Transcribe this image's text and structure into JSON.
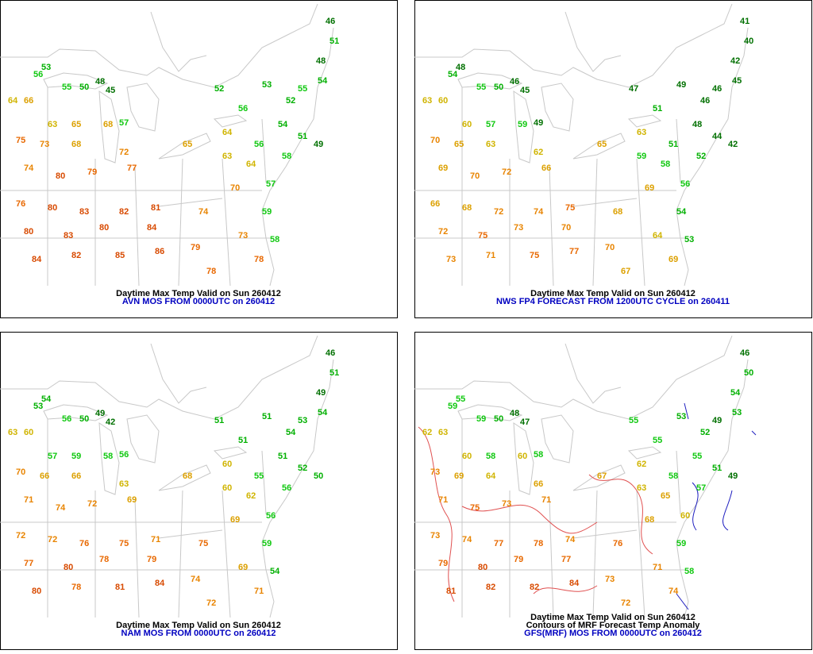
{
  "color_scale": [
    {
      "min": 0,
      "color": "#007000"
    },
    {
      "min": 50,
      "color": "#00b000"
    },
    {
      "min": 55,
      "color": "#10c810"
    },
    {
      "min": 60,
      "color": "#d0b400"
    },
    {
      "min": 65,
      "color": "#dca000"
    },
    {
      "min": 70,
      "color": "#e88400"
    },
    {
      "min": 75,
      "color": "#e86800"
    },
    {
      "min": 80,
      "color": "#d84a00"
    }
  ],
  "panels": [
    {
      "captions": [
        "Daytime Max Temp Valid on Sun 260412",
        "AVN MOS FROM 0000UTC on 260412"
      ],
      "values": [
        53,
        56,
        55,
        50,
        48,
        45,
        64,
        66,
        63,
        65,
        68,
        57,
        75,
        73,
        68,
        72,
        74,
        80,
        79,
        77,
        76,
        80,
        83,
        82,
        81,
        80,
        83,
        80,
        84,
        84,
        82,
        85,
        86,
        65,
        74,
        79,
        78,
        64,
        70,
        73,
        78,
        56,
        53,
        52,
        54,
        56,
        58,
        57,
        51,
        49,
        59,
        58,
        54,
        46,
        51,
        48,
        55,
        52,
        63,
        64
      ]
    },
    {
      "captions": [
        "Daytime Max Temp Valid on Sun 260412",
        "NWS FP4 FORECAST FROM 1200UTC CYCLE on 260411"
      ],
      "values": [
        48,
        54,
        55,
        50,
        46,
        45,
        63,
        60,
        60,
        57,
        59,
        49,
        70,
        65,
        63,
        62,
        69,
        70,
        72,
        66,
        66,
        68,
        72,
        74,
        75,
        72,
        75,
        73,
        70,
        73,
        71,
        75,
        77,
        65,
        68,
        70,
        67,
        63,
        69,
        64,
        69,
        51,
        49,
        46,
        48,
        51,
        52,
        56,
        44,
        42,
        54,
        53,
        45,
        41,
        40,
        42,
        46,
        47,
        59,
        58
      ]
    },
    {
      "captions": [
        "Daytime Max Temp Valid on Sun 260412",
        "NAM MOS FROM 0000UTC on 260412"
      ],
      "values": [
        54,
        53,
        56,
        50,
        49,
        42,
        63,
        60,
        57,
        59,
        58,
        56,
        70,
        66,
        66,
        63,
        71,
        74,
        72,
        69,
        72,
        72,
        76,
        75,
        71,
        77,
        80,
        78,
        79,
        80,
        78,
        81,
        84,
        68,
        75,
        74,
        72,
        60,
        69,
        69,
        71,
        51,
        51,
        54,
        51,
        55,
        56,
        56,
        52,
        50,
        59,
        54,
        54,
        46,
        51,
        49,
        53,
        51,
        60,
        62
      ]
    },
    {
      "captions": [
        "Daytime Max Temp Valid on Sun 260412",
        "Contours of MRF Forecast Temp Anomaly",
        "GFS(MRF) MOS FROM 0000UTC on 260412"
      ],
      "values": [
        55,
        59,
        59,
        50,
        48,
        47,
        62,
        63,
        60,
        58,
        60,
        58,
        73,
        69,
        64,
        66,
        71,
        75,
        73,
        71,
        73,
        74,
        77,
        78,
        74,
        79,
        80,
        79,
        77,
        81,
        82,
        82,
        84,
        67,
        76,
        73,
        72,
        62,
        68,
        71,
        74,
        55,
        53,
        52,
        55,
        58,
        57,
        60,
        51,
        49,
        59,
        58,
        53,
        46,
        50,
        54,
        49,
        55,
        63,
        65
      ]
    }
  ]
}
